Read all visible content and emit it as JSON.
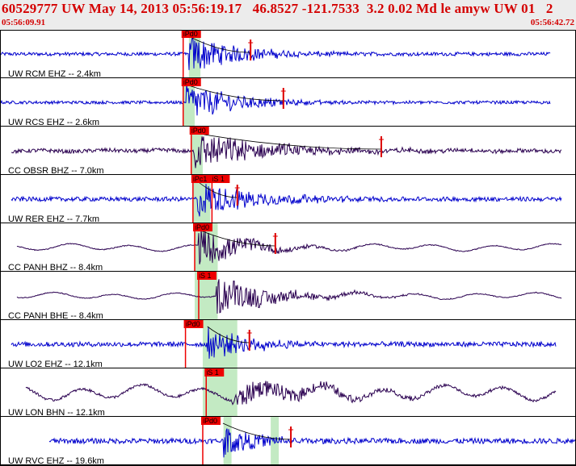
{
  "header": {
    "title": "60529777 UW May 14, 2013 05:56:19.17   46.8527 -121.7533  3.2 0.02 Md le amyw UW 01   2",
    "start_time": "05:56:09.91",
    "end_time": "05:56:42.72"
  },
  "chart_data": {
    "type": "line",
    "time_start": "05:56:09.91",
    "time_end": "05:56:42.72",
    "traces": [
      {
        "label": "UW RCM EHZ -- 2.4km",
        "color": "#0000cc",
        "noise": 0.08,
        "onset": 0.328,
        "amp": 0.9,
        "decay": 0.09,
        "low": 0,
        "start": 0.0,
        "end": 0.955,
        "picks": [
          {
            "text": "iPd0",
            "t": 0.318
          }
        ],
        "greens": [
          0.328,
          0.348
        ],
        "coda": 0.435,
        "codaLine": true
      },
      {
        "label": "UW RCS EHZ -- 2.6km",
        "color": "#0000cc",
        "noise": 0.07,
        "onset": 0.323,
        "amp": 0.9,
        "decay": 0.09,
        "low": 0,
        "start": 0.0,
        "end": 0.955,
        "picks": [
          {
            "text": "iPd0",
            "t": 0.318
          }
        ],
        "greens": [
          0.318,
          0.338
        ],
        "coda": 0.492,
        "codaLine": true
      },
      {
        "label": "CC OBSR BHZ -- 7.0km",
        "color": "#2a0050",
        "noise": 0.09,
        "onset": 0.338,
        "amp": 0.85,
        "decay": 0.14,
        "low": 0.05,
        "start": 0.02,
        "end": 0.975,
        "picks": [
          {
            "text": "iPd0",
            "t": 0.332
          }
        ],
        "greens": [
          0.332,
          0.352,
          0.372
        ],
        "coda": 0.662,
        "codaLine": true
      },
      {
        "label": "UW RER EHZ -- 7.7km",
        "color": "#0000cc",
        "noise": 0.1,
        "onset": 0.343,
        "amp": 0.9,
        "decay": 0.1,
        "low": 0,
        "start": 0.02,
        "end": 0.975,
        "picks": [
          {
            "text": "iPc1",
            "t": 0.335
          },
          {
            "text": "iS 1",
            "t": 0.368
          }
        ],
        "greens": [
          0.335,
          0.365
        ],
        "coda": 0.412,
        "codaLine": true
      },
      {
        "label": "CC PANH BHZ -- 8.4km",
        "color": "#2a0050",
        "noise": 0.02,
        "onset": 0.345,
        "amp": 0.9,
        "decay": 0.08,
        "low": 0.22,
        "start": 0.03,
        "end": 0.975,
        "picks": [
          {
            "text": "iPd0",
            "t": 0.338
          }
        ],
        "greens": [
          0.338,
          0.378
        ],
        "coda": 0.478,
        "codaLine": true
      },
      {
        "label": "CC PANH BHE -- 8.4km",
        "color": "#2a0050",
        "noise": 0.02,
        "onset": 0.375,
        "amp": 0.9,
        "decay": 0.1,
        "low": 0.2,
        "start": 0.03,
        "end": 0.975,
        "picks": [
          {
            "text": "iS 1",
            "t": 0.345
          }
        ],
        "greens": [
          0.338,
          0.378
        ],
        "coda": null,
        "codaLine": false
      },
      {
        "label": "UW LO2 EHZ -- 12.1km",
        "color": "#0000cc",
        "noise": 0.11,
        "onset": 0.36,
        "amp": 0.75,
        "decay": 0.08,
        "low": 0,
        "start": 0.02,
        "end": 0.965,
        "picks": [
          {
            "text": "iPd0",
            "t": 0.322
          }
        ],
        "greens": [
          0.352,
          0.412
        ],
        "coda": 0.433,
        "codaLine": true
      },
      {
        "label": "UW LON BHN -- 12.1km",
        "color": "#2a0050",
        "noise": 0.06,
        "onset": 0.402,
        "amp": 0.55,
        "decay": 0.15,
        "low": 0.45,
        "start": 0.045,
        "end": 0.965,
        "picks": [
          {
            "text": "iS 1",
            "t": 0.358
          }
        ],
        "greens": [
          0.352,
          0.412
        ],
        "coda": null,
        "codaLine": false
      },
      {
        "label": "UW RVC EHZ -- 19.6km",
        "color": "#0000cc",
        "noise": 0.12,
        "onset": 0.387,
        "amp": 0.8,
        "decay": 0.06,
        "low": 0,
        "start": 0.085,
        "end": 1.0,
        "picks": [
          {
            "text": "iPd0",
            "t": 0.352
          }
        ],
        "greens": [
          0.388,
          0.402,
          0.47,
          0.484
        ],
        "coda": 0.505,
        "codaLine": true
      }
    ]
  }
}
